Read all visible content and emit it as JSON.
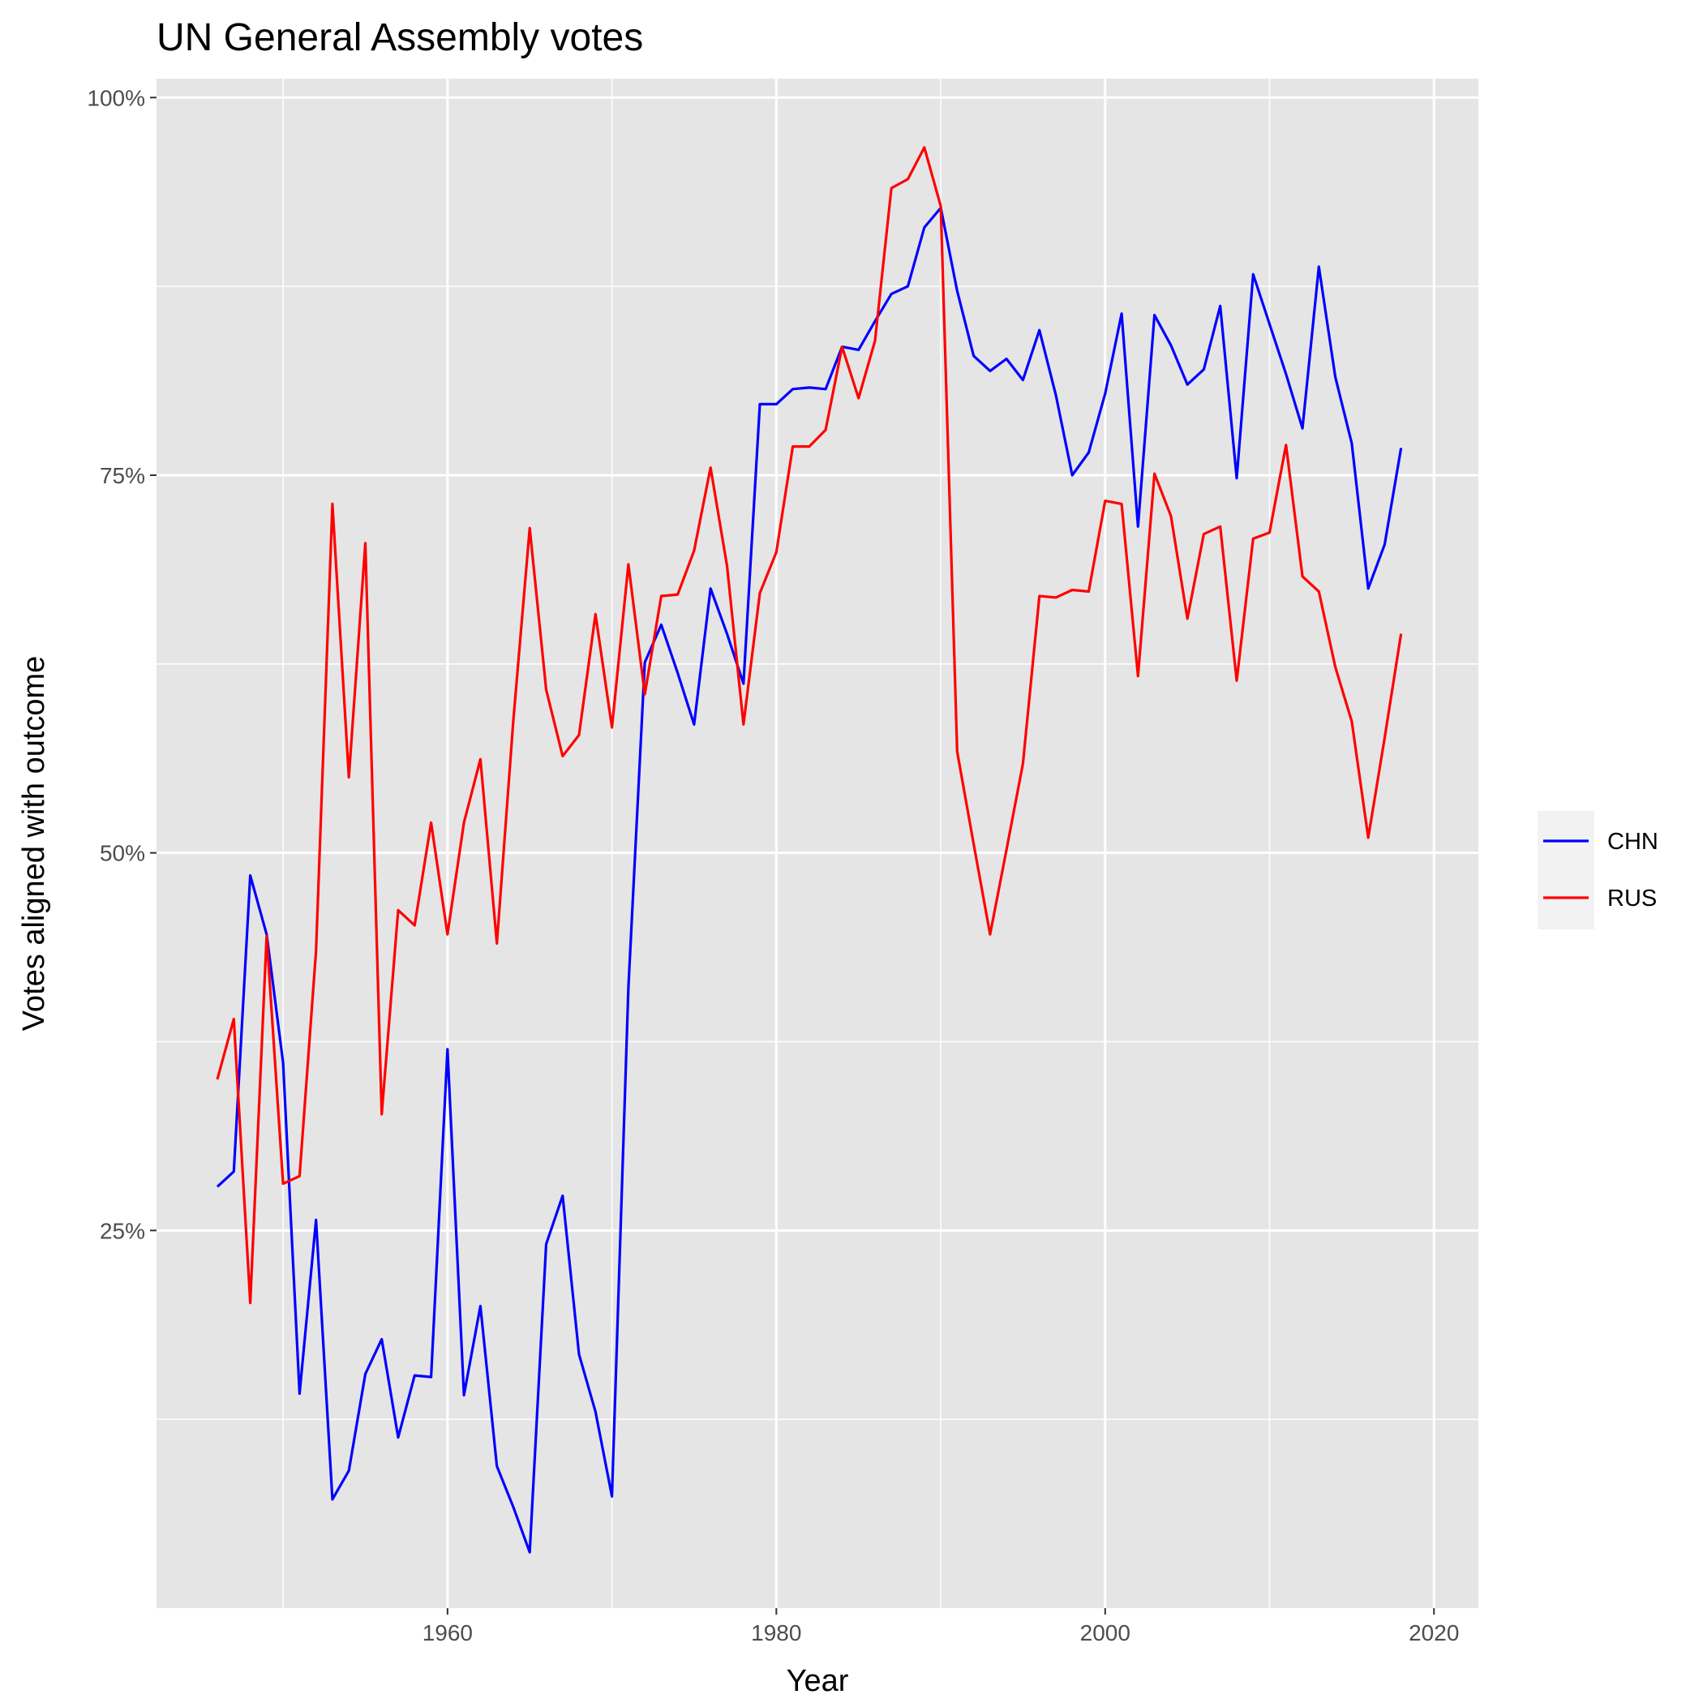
{
  "chart_data": {
    "type": "line",
    "title": "UN General Assembly votes",
    "xlabel": "Year",
    "ylabel": "Votes aligned with outcome",
    "xlim": [
      1942.3,
      2022.7
    ],
    "ylim": [
      0.0,
      1.0125
    ],
    "x_ticks": [
      1960,
      1980,
      2000,
      2020
    ],
    "x_tick_labels": [
      "1960",
      "1980",
      "2000",
      "2020"
    ],
    "x_minor_ticks": [
      1950,
      1970,
      1990,
      2010
    ],
    "y_ticks": [
      0.25,
      0.5,
      0.75,
      1.0
    ],
    "y_tick_labels": [
      "25%",
      "50%",
      "75%",
      "100%"
    ],
    "y_minor_ticks": [
      0.125,
      0.375,
      0.625,
      0.875
    ],
    "grid": true,
    "legend_position": "right",
    "colors": {
      "panel": "#e5e5e5",
      "grid": "#ffffff",
      "CHN": "#0000ff",
      "RUS": "#ff0000"
    },
    "x": [
      1946,
      1947,
      1948,
      1949,
      1950,
      1951,
      1952,
      1953,
      1954,
      1955,
      1956,
      1957,
      1958,
      1959,
      1960,
      1961,
      1962,
      1963,
      1964,
      1965,
      1966,
      1967,
      1968,
      1969,
      1970,
      1971,
      1972,
      1973,
      1974,
      1975,
      1976,
      1977,
      1978,
      1979,
      1980,
      1981,
      1982,
      1983,
      1984,
      1985,
      1986,
      1987,
      1988,
      1989,
      1990,
      1991,
      1992,
      1993,
      1994,
      1995,
      1996,
      1997,
      1998,
      1999,
      2000,
      2001,
      2002,
      2003,
      2004,
      2005,
      2006,
      2007,
      2008,
      2009,
      2010,
      2011,
      2012,
      2013,
      2014,
      2015,
      2016,
      2017,
      2018
    ],
    "series": [
      {
        "name": "CHN",
        "values": [
          0.279,
          0.289,
          0.485,
          0.446,
          0.361,
          0.142,
          0.257,
          0.072,
          0.091,
          0.155,
          0.178,
          0.113,
          0.154,
          0.153,
          0.37,
          0.141,
          0.2,
          0.094,
          0.067,
          0.037,
          0.241,
          0.273,
          0.168,
          0.13,
          0.074,
          0.411,
          0.626,
          0.651,
          0.619,
          0.585,
          0.675,
          0.645,
          0.612,
          0.797,
          0.797,
          0.807,
          0.808,
          0.807,
          0.835,
          0.833,
          0.852,
          0.87,
          0.875,
          0.914,
          0.927,
          0.872,
          0.829,
          0.819,
          0.827,
          0.813,
          0.846,
          0.803,
          0.75,
          0.765,
          0.804,
          0.857,
          0.716,
          0.856,
          0.836,
          0.81,
          0.82,
          0.862,
          0.748,
          0.883,
          0.85,
          0.817,
          0.781,
          0.888,
          0.815,
          0.771,
          0.675,
          0.704,
          0.768
        ]
      },
      {
        "name": "RUS",
        "values": [
          0.35,
          0.39,
          0.202,
          0.445,
          0.281,
          0.286,
          0.435,
          0.731,
          0.55,
          0.705,
          0.327,
          0.462,
          0.452,
          0.52,
          0.446,
          0.52,
          0.562,
          0.44,
          0.587,
          0.715,
          0.608,
          0.564,
          0.578,
          0.658,
          0.583,
          0.691,
          0.605,
          0.67,
          0.671,
          0.7,
          0.755,
          0.69,
          0.585,
          0.672,
          0.699,
          0.769,
          0.769,
          0.78,
          0.835,
          0.801,
          0.839,
          0.94,
          0.946,
          0.967,
          0.928,
          0.567,
          0.506,
          0.446,
          0.502,
          0.559,
          0.67,
          0.669,
          0.674,
          0.673,
          0.733,
          0.731,
          0.617,
          0.751,
          0.723,
          0.655,
          0.711,
          0.716,
          0.614,
          0.708,
          0.712,
          0.77,
          0.683,
          0.673,
          0.623,
          0.587,
          0.51,
          0.576,
          0.645
        ]
      }
    ]
  }
}
